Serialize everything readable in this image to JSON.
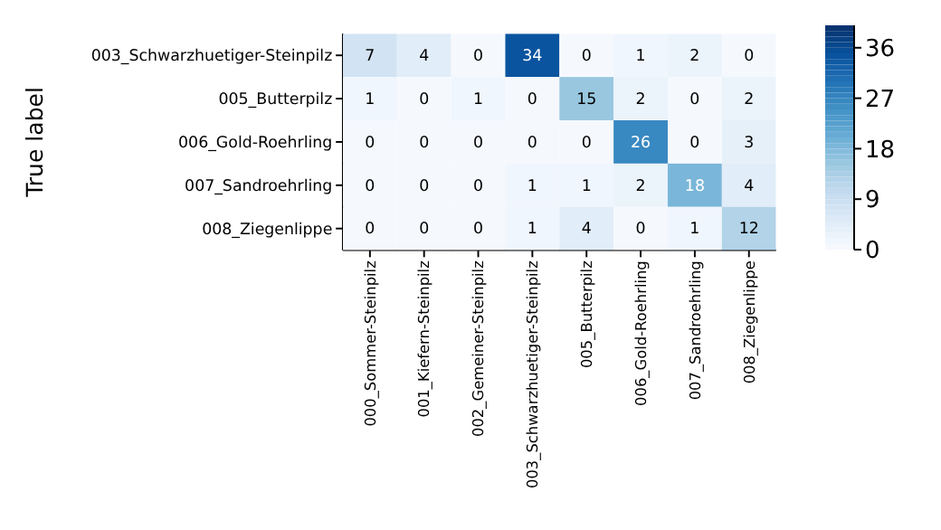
{
  "chart_data": {
    "type": "heatmap",
    "ylabel": "True label",
    "categories": [
      "000_Sommer-Steinpilz",
      "001_Kiefern-Steinpilz",
      "002_Gemeiner-Steinpilz",
      "003_Schwarzhuetiger-Steinpilz",
      "005_Butterpilz",
      "006_Gold-Roehrling",
      "007_Sandroehrling",
      "008_Ziegenlippe"
    ],
    "y_categories": [
      "003_Schwarzhuetiger-Steinpilz",
      "005_Butterpilz",
      "006_Gold-Roehrling",
      "007_Sandroehrling",
      "008_Ziegenlippe"
    ],
    "cells": [
      [
        7,
        4,
        0,
        34,
        0,
        1,
        2,
        0
      ],
      [
        1,
        0,
        1,
        0,
        15,
        2,
        0,
        2
      ],
      [
        0,
        0,
        0,
        0,
        0,
        26,
        0,
        3
      ],
      [
        0,
        0,
        0,
        1,
        1,
        2,
        18,
        4
      ],
      [
        0,
        0,
        0,
        1,
        4,
        0,
        1,
        12
      ]
    ],
    "data_labels": true,
    "clim": [
      0,
      40
    ],
    "cticks": [
      0,
      9,
      18,
      27,
      36
    ]
  }
}
